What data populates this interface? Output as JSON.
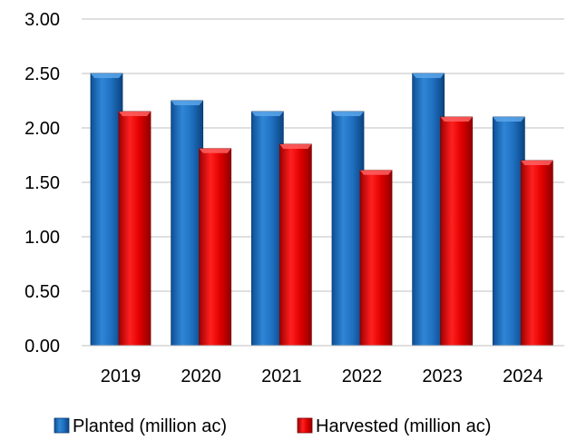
{
  "chart_data": {
    "type": "bar",
    "categories": [
      "2019",
      "2020",
      "2021",
      "2022",
      "2023",
      "2024"
    ],
    "series": [
      {
        "name": "Planted (million ac)",
        "values": [
          2.5,
          2.25,
          2.15,
          2.15,
          2.5,
          2.1
        ],
        "color": "#1f6fc0"
      },
      {
        "name": "Harvested (million ac)",
        "values": [
          2.15,
          1.81,
          1.85,
          1.61,
          2.1,
          1.7
        ],
        "color": "#e00000"
      }
    ],
    "title": "",
    "xlabel": "",
    "ylabel": "",
    "ylim": [
      0,
      3
    ],
    "yticks": [
      "0.00",
      "0.50",
      "1.00",
      "1.50",
      "2.00",
      "2.50",
      "3.00"
    ],
    "grid": true,
    "legend_position": "bottom"
  }
}
